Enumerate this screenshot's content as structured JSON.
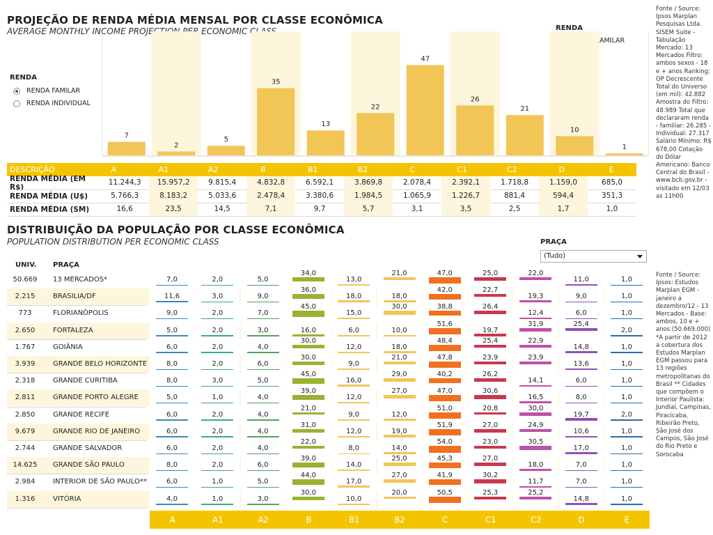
{
  "income_section": {
    "title": "PROJEÇÃO DE RENDA MÉDIA MENSAL POR CLASSE ECONÔMICA",
    "subtitle": "AVERAGE MONTHLY INCOME PROJECTION PER ECONOMIC CLASS"
  },
  "renda_options": {
    "label": "RENDA",
    "options": [
      {
        "label": "RENDA FAMILAR",
        "selected": true
      },
      {
        "label": "RENDA INDIVIDUAL",
        "selected": false
      }
    ]
  },
  "legend": {
    "title": "RENDA",
    "item": "RENDA FAMILAR",
    "color": "#f2c557"
  },
  "chart_data": {
    "type": "bar",
    "categories": [
      "A",
      "A1",
      "A2",
      "B",
      "B1",
      "B2",
      "C",
      "C1",
      "C2",
      "D",
      "E"
    ],
    "series": [
      {
        "name": "RENDA FAMILAR",
        "values": [
          7,
          2,
          5,
          35,
          13,
          22,
          47,
          26,
          21,
          10,
          1
        ]
      }
    ],
    "ylim": [
      0,
      50
    ],
    "legend_position": "top-right",
    "bar_color": "#f2c557"
  },
  "income_table": {
    "header_label": "DESCRIÇÃO",
    "classes": [
      "A",
      "A1",
      "A2",
      "B",
      "B1",
      "B2",
      "C",
      "C1",
      "C2",
      "D",
      "E"
    ],
    "rows": [
      {
        "label": "RENDA MÉDIA (EM R$)",
        "values": [
          "11.244,3",
          "15.957,2",
          "9.815,4",
          "4.832,8",
          "6.592,1",
          "3.869,8",
          "2.078,4",
          "2.392,1",
          "1.718,8",
          "1.159,0",
          "685,0"
        ]
      },
      {
        "label": "RENDA MÉDIA (U$)",
        "values": [
          "5.766,3",
          "8.183,2",
          "5.033,6",
          "2.478,4",
          "3.380,6",
          "1.984,5",
          "1.065,9",
          "1.226,7",
          "881,4",
          "594,4",
          "351,3"
        ]
      },
      {
        "label": "RENDA MÉDIA (SM)",
        "values": [
          "16,6",
          "23,5",
          "14,5",
          "7,1",
          "9,7",
          "5,7",
          "3,1",
          "3,5",
          "2,5",
          "1,7",
          "1,0"
        ]
      }
    ]
  },
  "population_section": {
    "title": "DISTRIBUIÇÃO DA POPULAÇÃO POR CLASSE ECONÔMICA",
    "subtitle": "POPULATION DISTRIBUTION PER ECONOMIC CLASS"
  },
  "praca_filter": {
    "label": "PRAÇA",
    "selected": "(Tudo)"
  },
  "population_table": {
    "col_univ": "UNIV.",
    "col_praca": "PRAÇA",
    "classes": [
      "A",
      "A1",
      "A2",
      "B",
      "B1",
      "B2",
      "C",
      "C1",
      "C2",
      "D",
      "E"
    ],
    "class_colors": [
      "#3a88b8",
      "#3aa59a",
      "#52a35a",
      "#97b330",
      "#f2c557",
      "#f2c557",
      "#f17020",
      "#c9384e",
      "#c050a8",
      "#9050b8",
      "#2a6aa8"
    ],
    "rows": [
      {
        "univ": "50.669",
        "praca": "13 MERCADOS*",
        "values": [
          "7,0",
          "2,0",
          "5,0",
          "34,0",
          "13,0",
          "21,0",
          "47,0",
          "25,0",
          "22,0",
          "11,0",
          "1,0"
        ]
      },
      {
        "univ": "2.215",
        "praca": "BRASILIA/DF",
        "values": [
          "11,6",
          "3,0",
          "9,0",
          "36,0",
          "18,0",
          "18,0",
          "42,0",
          "22,7",
          "19,3",
          "9,0",
          "1,0"
        ]
      },
      {
        "univ": "773",
        "praca": "FLORIANÓPOLIS",
        "values": [
          "9,0",
          "2,0",
          "7,0",
          "45,0",
          "15,0",
          "30,0",
          "38,8",
          "26,4",
          "12,4",
          "6,0",
          "1,0"
        ]
      },
      {
        "univ": "2.650",
        "praca": "FORTALEZA",
        "values": [
          "5,0",
          "2,0",
          "3,0",
          "16,0",
          "6,0",
          "10,0",
          "51,6",
          "19,7",
          "31,9",
          "25,4",
          "2,0"
        ]
      },
      {
        "univ": "1.767",
        "praca": "GOIÂNIA",
        "values": [
          "6,0",
          "2,0",
          "4,0",
          "30,0",
          "12,0",
          "18,0",
          "48,4",
          "25,4",
          "22,9",
          "14,8",
          "1,0"
        ]
      },
      {
        "univ": "3.939",
        "praca": "GRANDE BELO HORIZONTE",
        "values": [
          "8,0",
          "2,0",
          "6,0",
          "30,0",
          "9,0",
          "21,0",
          "47,8",
          "23,9",
          "23,9",
          "13,6",
          "1,0"
        ]
      },
      {
        "univ": "2.318",
        "praca": "GRANDE CURITIBA",
        "values": [
          "8,0",
          "3,0",
          "5,0",
          "45,0",
          "16,0",
          "29,0",
          "40,2",
          "26,2",
          "14,1",
          "6,0",
          "1,0"
        ]
      },
      {
        "univ": "2.811",
        "praca": "GRANDE PORTO ALEGRE",
        "values": [
          "5,0",
          "1,0",
          "4,0",
          "39,0",
          "12,0",
          "27,0",
          "47,0",
          "30,6",
          "16,5",
          "8,0",
          "1,0"
        ]
      },
      {
        "univ": "2.850",
        "praca": "GRANDE RECIFE",
        "values": [
          "6,0",
          "2,0",
          "4,0",
          "21,0",
          "9,0",
          "12,0",
          "51,0",
          "20,8",
          "30,0",
          "19,7",
          "2,0"
        ]
      },
      {
        "univ": "9.679",
        "praca": "GRANDE RIO DE JANEIRO",
        "values": [
          "6,0",
          "2,0",
          "4,0",
          "31,0",
          "12,0",
          "19,0",
          "51,9",
          "27,0",
          "24,9",
          "10,6",
          "1,0"
        ]
      },
      {
        "univ": "2.744",
        "praca": "GRANDE SALVADOR",
        "values": [
          "6,0",
          "2,0",
          "4,0",
          "22,0",
          "8,0",
          "14,0",
          "54,0",
          "23,0",
          "30,5",
          "17,0",
          "1,0"
        ]
      },
      {
        "univ": "14.625",
        "praca": "GRANDE SÃO PAULO",
        "values": [
          "8,0",
          "2,0",
          "6,0",
          "39,0",
          "14,0",
          "25,0",
          "45,3",
          "27,0",
          "18,0",
          "7,0",
          "1,0"
        ]
      },
      {
        "univ": "2.984",
        "praca": "INTERIOR DE SÃO PAULO**",
        "values": [
          "6,0",
          "1,0",
          "5,0",
          "44,0",
          "17,0",
          "27,0",
          "41,9",
          "30,2",
          "11,7",
          "7,0",
          "1,0"
        ]
      },
      {
        "univ": "1.316",
        "praca": "VITÓRIA",
        "values": [
          "4,0",
          "1,0",
          "3,0",
          "30,0",
          "10,0",
          "20,0",
          "50,5",
          "25,3",
          "25,2",
          "14,8",
          "1,0"
        ]
      }
    ]
  },
  "source_top": "Fonte / Source: Ipsos Marplan Pesquisas Ltda. SISEM Suite - Tabulação Mercado: 13 Mercados Filtro: ambos sexos - 18 e + anos Ranking: OP Decrescente Total do Universo (em mil): 42.882 Amostra do Filtro: 48.989 Total que declararam renda - familiar: 26.285 - Individual: 27.317 Salário Mínimo: R$ 678,00 Cotação do Dólar Americano: Banco Central do Brasil - www.bcb.gov.br - visitado em 12/03 as 11h00",
  "source_bottom": "Fonte / Source: Ipsos: Estudos Marplan EGM - janeiro a dezembro/12 - 13 Mercados - Base: ambos, 10 e + anos (50.669.000) *A partir de 2012 a cobertura dos Estudos Marplan EGM passou para 13 regiões metropolitanas do Brasil ** Cidades que compõem o Interior Paulista: Jundiaí, Campinas, Piracicaba, Ribeirão Preto, São José dos Campos, São José do Rio Preto e Sorocaba"
}
